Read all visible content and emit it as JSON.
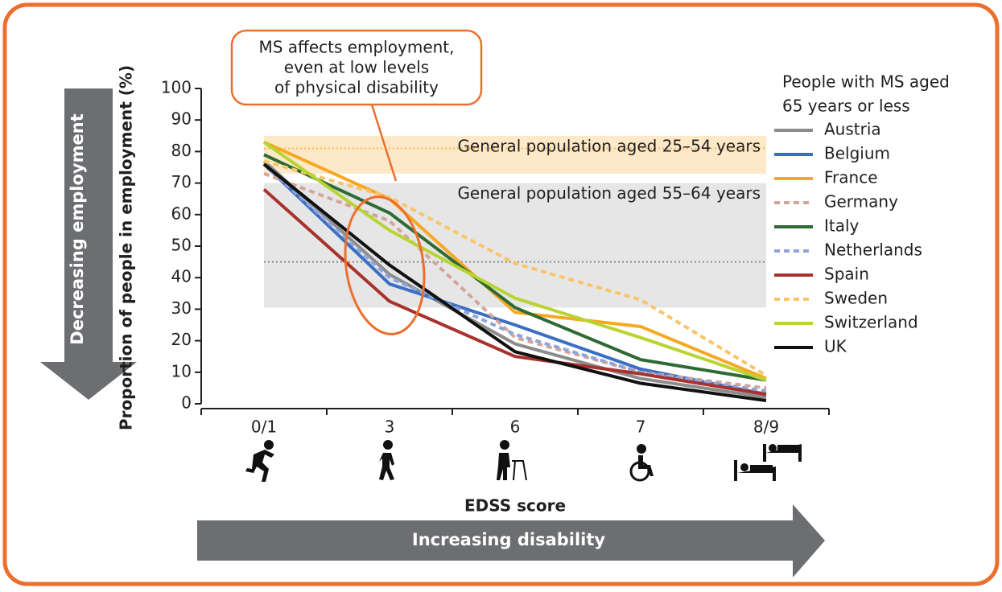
{
  "chart_data": {
    "type": "line",
    "y_label": "Proportion of people in employment (%)",
    "x_label": "EDSS score",
    "left_arrow": "Decreasing employment",
    "bottom_arrow": "Increasing disability",
    "annotation": [
      "MS affects employment,",
      "even at low levels",
      "of physical disability"
    ],
    "legend_title": [
      "People with MS aged",
      "65 years or less"
    ],
    "bands": [
      {
        "label": "General population aged 25–54 years",
        "range": [
          73,
          85
        ],
        "line": 81,
        "color": "#fde9c8",
        "line_color": "#f7b955"
      },
      {
        "label": "General population aged 55–64 years",
        "range": [
          30.5,
          70
        ],
        "line": 45,
        "color": "#e6e6e6",
        "line_color": "#888888"
      }
    ],
    "categories": [
      "0/1",
      "3",
      "6",
      "7",
      "8/9"
    ],
    "ylim": [
      0,
      100
    ],
    "yticks": [
      0,
      10,
      20,
      30,
      40,
      50,
      60,
      70,
      80,
      90,
      100
    ],
    "series": [
      {
        "name": "Austria",
        "color": "#8c8c8c",
        "values": [
          77,
          41,
          19,
          8,
          2
        ]
      },
      {
        "name": "Belgium",
        "color": "#3b6fc4",
        "values": [
          76,
          38,
          25,
          11,
          3
        ]
      },
      {
        "name": "France",
        "color": "#f7a823",
        "values": [
          83,
          65,
          29,
          24.5,
          8
        ]
      },
      {
        "name": "Germany",
        "color": "#d4a59a",
        "dashed": true,
        "values": [
          73,
          58,
          21,
          10,
          5
        ]
      },
      {
        "name": "Italy",
        "color": "#2e6b34",
        "values": [
          79,
          60.5,
          30.5,
          14,
          7.5
        ]
      },
      {
        "name": "Netherlands",
        "color": "#8fa4d9",
        "dashed": true,
        "values": [
          76,
          40,
          22,
          10,
          4
        ]
      },
      {
        "name": "Spain",
        "color": "#a8322d",
        "values": [
          68,
          32.5,
          15,
          9.5,
          3
        ]
      },
      {
        "name": "Sweden",
        "color": "#fbc46a",
        "dashed": true,
        "values": [
          77,
          65.5,
          44.5,
          33,
          9
        ]
      },
      {
        "name": "Switzerland",
        "color": "#b8d432",
        "values": [
          83,
          55,
          33.5,
          21,
          7.5
        ]
      },
      {
        "name": "UK",
        "color": "#111111",
        "values": [
          76,
          44,
          16.5,
          6.5,
          1
        ]
      }
    ]
  }
}
